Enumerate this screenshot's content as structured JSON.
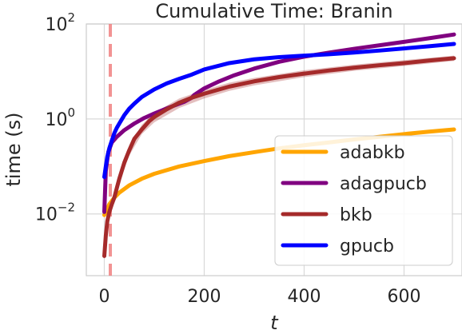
{
  "chart_data": {
    "type": "line",
    "title": "Cumulative Time: Branin",
    "xlabel": "t",
    "ylabel": "time (s)",
    "xlim": [
      -36,
      716
    ],
    "ylim_log10": [
      -3.3,
      2.0
    ],
    "y_scale": "log",
    "x_ticks": [
      0,
      200,
      400,
      600
    ],
    "x_tick_labels": [
      "0",
      "200",
      "400",
      "600"
    ],
    "y_ticks_log10": [
      -2,
      0,
      2
    ],
    "y_tick_base": "10",
    "y_tick_exponents": [
      "−2",
      "0",
      "2"
    ],
    "grid": true,
    "legend_position": "lower right",
    "vertical_marker": {
      "x": 12,
      "style": "dashed",
      "color": "#f08080"
    },
    "series": [
      {
        "name": "adabkb",
        "color": "#ffa500",
        "x": [
          0,
          5,
          10,
          20,
          30,
          50,
          75,
          100,
          150,
          200,
          250,
          300,
          350,
          400,
          450,
          500,
          550,
          600,
          650,
          700
        ],
        "y": [
          0.0095,
          0.012,
          0.016,
          0.022,
          0.028,
          0.04,
          0.055,
          0.07,
          0.1,
          0.13,
          0.165,
          0.2,
          0.24,
          0.28,
          0.32,
          0.37,
          0.42,
          0.48,
          0.54,
          0.6
        ]
      },
      {
        "name": "adagpucb",
        "color": "#800080",
        "x": [
          0,
          3,
          8,
          15,
          25,
          40,
          60,
          80,
          100,
          130,
          160,
          175,
          180,
          200,
          230,
          260,
          300,
          350,
          400,
          450,
          500,
          550,
          600,
          650,
          700
        ],
        "y": [
          0.011,
          0.08,
          0.2,
          0.32,
          0.42,
          0.58,
          0.8,
          1.05,
          1.3,
          1.75,
          2.3,
          2.8,
          3.2,
          4.4,
          6.2,
          8.3,
          11.5,
          16.0,
          20.5,
          25.0,
          30.0,
          35.5,
          42.0,
          50.0,
          60.0
        ]
      },
      {
        "name": "bkb",
        "color": "#a52a2a",
        "x": [
          0,
          3,
          6,
          10,
          15,
          20,
          25,
          30,
          40,
          50,
          60,
          75,
          90,
          100,
          125,
          150,
          175,
          200,
          250,
          300,
          350,
          400,
          450,
          500,
          550,
          600,
          650,
          700
        ],
        "y": [
          0.0013,
          0.0035,
          0.007,
          0.011,
          0.016,
          0.022,
          0.035,
          0.055,
          0.12,
          0.22,
          0.38,
          0.6,
          0.9,
          1.1,
          1.6,
          2.2,
          2.8,
          3.4,
          4.8,
          6.2,
          7.6,
          9.0,
          10.5,
          12.0,
          13.5,
          15.0,
          17.0,
          19.0
        ]
      },
      {
        "name": "gpucb",
        "color": "#0000ff",
        "x": [
          0,
          3,
          6,
          10,
          15,
          20,
          25,
          30,
          40,
          50,
          60,
          75,
          100,
          125,
          150,
          175,
          200,
          250,
          300,
          350,
          400,
          450,
          500,
          550,
          600,
          650,
          700
        ],
        "y": [
          0.06,
          0.1,
          0.16,
          0.24,
          0.35,
          0.5,
          0.65,
          0.8,
          1.2,
          1.65,
          2.1,
          2.9,
          4.2,
          5.6,
          7.0,
          8.6,
          11.0,
          15.0,
          18.0,
          20.0,
          21.5,
          23.0,
          25.0,
          27.5,
          30.5,
          34.0,
          38.0
        ]
      }
    ],
    "bkb_band": {
      "x": [
        0,
        10,
        20,
        30,
        50,
        75,
        100,
        150,
        200,
        250,
        300,
        400,
        500,
        600,
        700
      ],
      "y_low": [
        0.0011,
        0.009,
        0.018,
        0.045,
        0.17,
        0.48,
        0.85,
        1.7,
        2.7,
        3.9,
        5.1,
        7.6,
        10.3,
        13.0,
        16.7
      ],
      "y_high": [
        0.0015,
        0.013,
        0.027,
        0.068,
        0.28,
        0.75,
        1.35,
        2.7,
        4.1,
        5.8,
        7.3,
        10.6,
        13.9,
        17.3,
        21.5
      ]
    }
  }
}
